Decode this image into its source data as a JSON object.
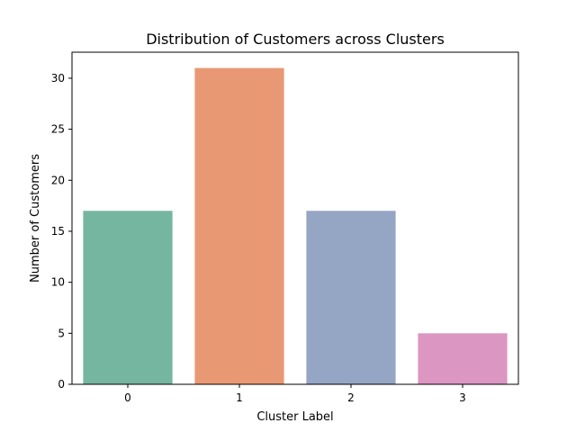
{
  "chart_data": {
    "type": "bar",
    "title": "Distribution of Customers across Clusters",
    "xlabel": "Cluster Label",
    "ylabel": "Number of Customers",
    "categories": [
      "0",
      "1",
      "2",
      "3"
    ],
    "values": [
      17,
      31,
      17,
      5
    ],
    "colors": [
      "#75b6a0",
      "#e99874",
      "#95a5c4",
      "#db96c2"
    ],
    "ylim": [
      0,
      32.55
    ],
    "yticks": [
      0,
      5,
      10,
      15,
      20,
      25,
      30
    ],
    "grid": false,
    "legend": "none"
  }
}
